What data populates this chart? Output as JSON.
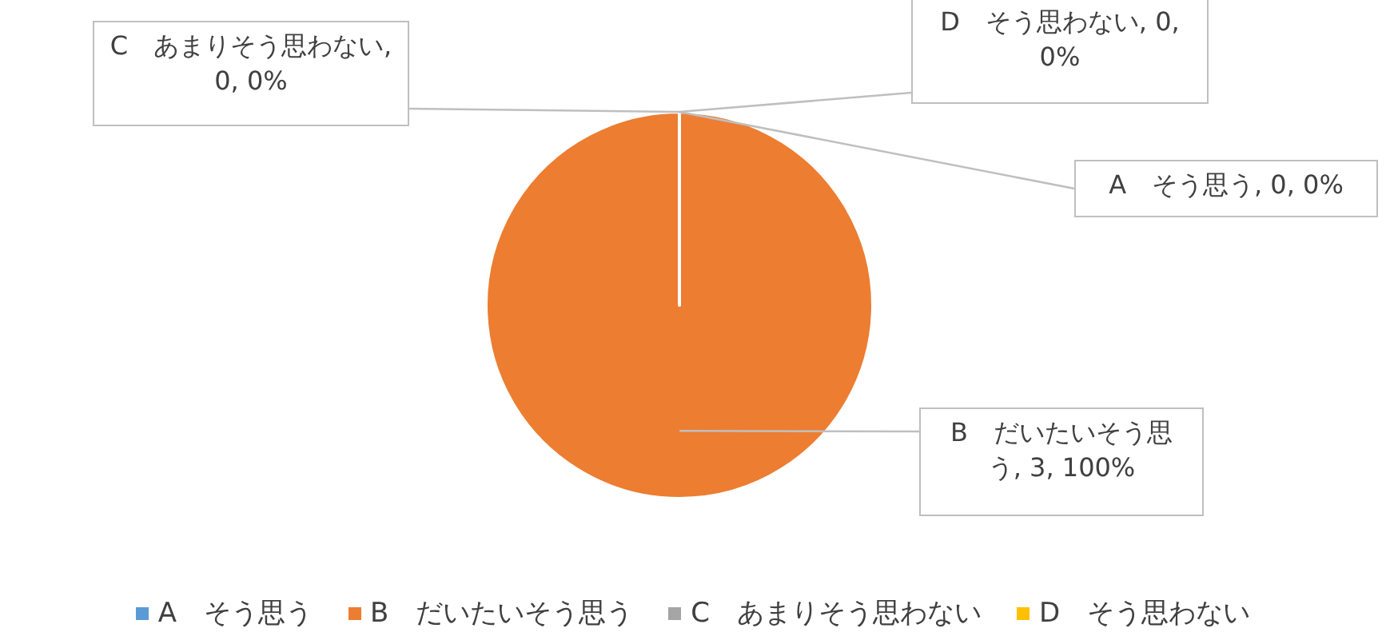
{
  "chart_data": {
    "type": "pie",
    "categories": [
      "A　そう思う",
      "B　だいたいそう思う",
      "C　あまりそう思わない",
      "D　そう思わない"
    ],
    "values": [
      0,
      3,
      0,
      0
    ],
    "colors": [
      "#5b9bd5",
      "#ed7d31",
      "#a5a5a5",
      "#ffc000"
    ],
    "value_labels": [
      "A　そう思う, 0, 0%",
      "B　だいたいそう思う, 3, 100%",
      "C　あまりそう思わない, 0, 0%",
      "D　そう思わない, 0, 0%"
    ],
    "legend": "bottom"
  }
}
